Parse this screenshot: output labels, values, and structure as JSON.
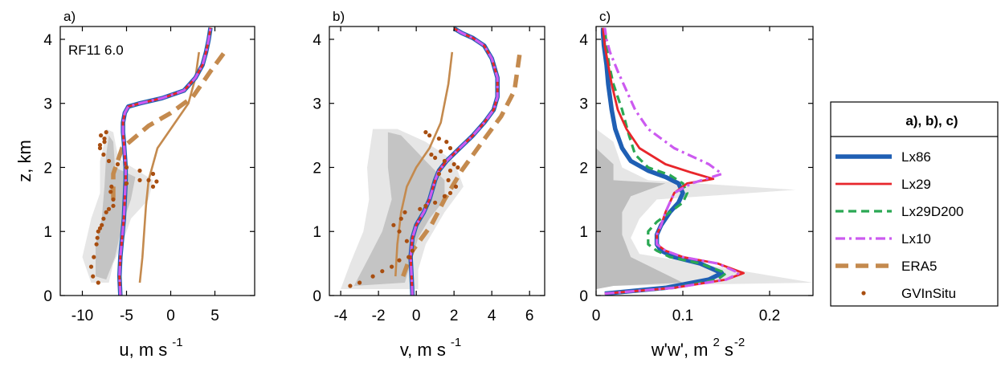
{
  "ylabel": "z, km",
  "legend": {
    "title": "a), b), c)",
    "entries": [
      {
        "key": "lx86",
        "label": "Lx86",
        "color": "#1f5fb4",
        "style": "solid-thick"
      },
      {
        "key": "lx29",
        "label": "Lx29",
        "color": "#e8262b",
        "style": "solid"
      },
      {
        "key": "lx29d",
        "label": "Lx29D200",
        "color": "#2aa853",
        "style": "dash"
      },
      {
        "key": "lx10",
        "label": "Lx10",
        "color": "#cc5af0",
        "style": "dashdot"
      },
      {
        "key": "era5",
        "label": "ERA5",
        "color": "#c48a4e",
        "style": "dash-thick"
      },
      {
        "key": "gv",
        "label": "GVInSitu",
        "color": "#a84e10",
        "style": "dot"
      }
    ]
  },
  "chart_data": [
    {
      "type": "line",
      "panel": "a)",
      "annotation": "RF11 6.0",
      "xlabel": "u, m s",
      "xlabel_sup": "-1",
      "xlim": [
        -12.5,
        9.5
      ],
      "ylim": [
        0,
        4.2
      ],
      "xticks": [
        -10,
        -5,
        0,
        5
      ],
      "yticks": [
        0,
        1,
        2,
        3,
        4
      ],
      "series": [
        {
          "name": "Lx86",
          "x": [
            -5.7,
            -5.8,
            -5.7,
            -5.5,
            -5.3,
            -5.2,
            -5.1,
            -5.1,
            -5.2,
            -5.3,
            -5.4,
            -5.4,
            -5.2,
            -4.8,
            -3.5,
            -1,
            1.5,
            2.8,
            3.6,
            4.0,
            4.3,
            4.5
          ],
          "y": [
            0,
            0.3,
            0.6,
            0.9,
            1.2,
            1.5,
            1.8,
            2.0,
            2.2,
            2.4,
            2.55,
            2.7,
            2.85,
            2.95,
            3.0,
            3.08,
            3.2,
            3.4,
            3.6,
            3.8,
            4.0,
            4.18
          ]
        },
        {
          "name": "Lx29",
          "x": [
            -5.7,
            -5.8,
            -5.7,
            -5.5,
            -5.3,
            -5.2,
            -5.1,
            -5.1,
            -5.2,
            -5.3,
            -5.4,
            -5.4,
            -5.2,
            -4.8,
            -3.5,
            -1,
            1.5,
            2.8,
            3.6,
            4.0,
            4.3,
            4.5
          ],
          "y": [
            0,
            0.3,
            0.6,
            0.9,
            1.2,
            1.5,
            1.8,
            2.0,
            2.2,
            2.4,
            2.55,
            2.7,
            2.85,
            2.95,
            3.0,
            3.08,
            3.2,
            3.4,
            3.6,
            3.8,
            4.0,
            4.18
          ]
        },
        {
          "name": "Lx29D200",
          "x": [
            -5.7,
            -5.8,
            -5.7,
            -5.5,
            -5.3,
            -5.2,
            -5.1,
            -5.1,
            -5.2,
            -5.3,
            -5.4,
            -5.4,
            -5.2,
            -4.8,
            -3.5,
            -1,
            1.5,
            2.8,
            3.6,
            4.0,
            4.3,
            4.5
          ],
          "y": [
            0,
            0.3,
            0.6,
            0.9,
            1.2,
            1.5,
            1.8,
            2.0,
            2.2,
            2.4,
            2.55,
            2.7,
            2.85,
            2.95,
            3.0,
            3.08,
            3.2,
            3.4,
            3.6,
            3.8,
            4.0,
            4.18
          ]
        },
        {
          "name": "Lx10",
          "x": [
            -5.7,
            -5.8,
            -5.7,
            -5.5,
            -5.3,
            -5.2,
            -5.1,
            -5.1,
            -5.2,
            -5.3,
            -5.4,
            -5.4,
            -5.2,
            -4.8,
            -3.5,
            -1,
            1.5,
            2.8,
            3.6,
            4.0,
            4.3,
            4.5
          ],
          "y": [
            0,
            0.3,
            0.6,
            0.9,
            1.2,
            1.5,
            1.8,
            2.0,
            2.2,
            2.4,
            2.55,
            2.7,
            2.85,
            2.95,
            3.0,
            3.08,
            3.2,
            3.4,
            3.6,
            3.8,
            4.0,
            4.18
          ]
        },
        {
          "name": "ERA5",
          "x": [
            -6.5,
            -6.5,
            -6.5,
            -6.5,
            -5.5,
            -2.5,
            0,
            2.5,
            4.5,
            6.2
          ],
          "y": [
            1.5,
            1.62,
            1.62,
            1.9,
            2.3,
            2.65,
            2.85,
            3.1,
            3.5,
            3.82
          ]
        },
        {
          "name": "thin-brown",
          "x": [
            -3.5,
            -3.2,
            -3.0,
            -2.8,
            -2.5,
            -1.5,
            0.5,
            2.0,
            2.8,
            3.2
          ],
          "y": [
            0.2,
            0.6,
            1.0,
            1.4,
            1.8,
            2.3,
            2.7,
            3.0,
            3.4,
            3.8
          ]
        },
        {
          "name": "GVInSitu",
          "x": [
            -8.2,
            -8.8,
            -9,
            -8.7,
            -8.4,
            -8.3,
            -8.2,
            -8,
            -7.8,
            -7.6,
            -7.3,
            -7,
            -6.5,
            -6.5,
            -6.8,
            -6.7,
            -5,
            -3.5,
            -2.5,
            -2,
            -1.6,
            -2,
            -3.5,
            -5,
            -6,
            -7,
            -7.6,
            -8,
            -8,
            -7.5,
            -7.5,
            -7.9,
            -7.3
          ],
          "y": [
            0.2,
            0.3,
            0.45,
            0.6,
            0.8,
            0.9,
            1.0,
            1.05,
            1.1,
            1.2,
            1.3,
            1.35,
            1.4,
            1.5,
            1.62,
            1.7,
            1.75,
            1.8,
            1.8,
            1.7,
            1.78,
            1.9,
            1.95,
            2.0,
            2.05,
            2.1,
            2.2,
            2.3,
            2.35,
            2.4,
            2.45,
            2.5,
            2.55
          ]
        }
      ]
    },
    {
      "type": "line",
      "panel": "b)",
      "xlabel": "v, m s",
      "xlabel_sup": "-1",
      "xlim": [
        -4.6,
        6.8
      ],
      "ylim": [
        0,
        4.2
      ],
      "xticks": [
        -4,
        -2,
        0,
        2,
        4,
        6
      ],
      "yticks": [
        0,
        1,
        2,
        3,
        4
      ],
      "series": [
        {
          "name": "Lx86",
          "x": [
            -0.2,
            -0.25,
            -0.3,
            -0.2,
            0,
            0.4,
            0.7,
            0.9,
            1.0,
            1.2,
            1.6,
            2.3,
            3.0,
            3.6,
            4.1,
            4.3,
            4.3,
            4.0,
            3.6,
            3.0,
            2.4,
            2.0
          ],
          "y": [
            0,
            0.3,
            0.6,
            0.9,
            1.1,
            1.3,
            1.5,
            1.7,
            1.8,
            1.95,
            2.1,
            2.3,
            2.5,
            2.7,
            2.9,
            3.1,
            3.4,
            3.7,
            3.9,
            4.02,
            4.1,
            4.17
          ]
        },
        {
          "name": "Lx29",
          "x": [
            -0.2,
            -0.25,
            -0.3,
            -0.2,
            0,
            0.4,
            0.7,
            0.9,
            1.0,
            1.2,
            1.6,
            2.3,
            3.0,
            3.6,
            4.1,
            4.3,
            4.3,
            4.0,
            3.6,
            3.0,
            2.4,
            2.0
          ],
          "y": [
            0,
            0.3,
            0.6,
            0.9,
            1.1,
            1.3,
            1.5,
            1.7,
            1.8,
            1.95,
            2.1,
            2.3,
            2.5,
            2.7,
            2.9,
            3.1,
            3.4,
            3.7,
            3.9,
            4.02,
            4.1,
            4.17
          ]
        },
        {
          "name": "Lx29D200",
          "x": [
            -0.2,
            -0.25,
            -0.3,
            -0.2,
            0,
            0.4,
            0.7,
            0.9,
            1.0,
            1.2,
            1.6,
            2.3,
            3.0,
            3.6,
            4.1,
            4.3,
            4.3,
            4.0,
            3.6,
            3.0,
            2.4,
            2.0
          ],
          "y": [
            0,
            0.3,
            0.6,
            0.9,
            1.1,
            1.3,
            1.5,
            1.7,
            1.8,
            1.95,
            2.1,
            2.3,
            2.5,
            2.7,
            2.9,
            3.1,
            3.4,
            3.7,
            3.9,
            4.02,
            4.1,
            4.17
          ]
        },
        {
          "name": "Lx10",
          "x": [
            -0.2,
            -0.25,
            -0.3,
            -0.2,
            0,
            0.4,
            0.7,
            0.9,
            1.0,
            1.2,
            1.6,
            2.3,
            3.0,
            3.6,
            4.1,
            4.3,
            4.3,
            4.0,
            3.6,
            3.0,
            2.4,
            2.0
          ],
          "y": [
            0,
            0.3,
            0.6,
            0.9,
            1.1,
            1.3,
            1.5,
            1.7,
            1.8,
            1.95,
            2.1,
            2.3,
            2.5,
            2.7,
            2.9,
            3.1,
            3.4,
            3.7,
            3.9,
            4.02,
            4.1,
            4.17
          ]
        },
        {
          "name": "ERA5",
          "x": [
            -0.7,
            -0.2,
            0.8,
            1.5,
            2.4,
            3.5,
            4.5,
            5.2,
            5.3,
            5.5
          ],
          "y": [
            0.3,
            0.7,
            1.1,
            1.5,
            1.95,
            2.4,
            2.8,
            3.2,
            3.4,
            3.82
          ]
        },
        {
          "name": "thin-brown",
          "x": [
            -1.1,
            -1.0,
            -0.8,
            -0.5,
            0,
            0.7,
            1.3,
            1.7,
            1.9
          ],
          "y": [
            0.3,
            0.8,
            1.3,
            1.7,
            2.0,
            2.3,
            2.7,
            3.3,
            3.8
          ]
        },
        {
          "name": "GVInSitu",
          "x": [
            -3.5,
            -3,
            -2.3,
            -1.8,
            -1.3,
            -0.9,
            -0.4,
            -0.2,
            -0.5,
            -0.9,
            -1.2,
            -0.8,
            -0.6,
            0.2,
            0.5,
            1,
            1.5,
            1.8,
            2.1,
            1.7,
            1.2,
            1.8,
            2.2,
            2.0,
            1.5,
            1.0,
            0.8,
            1.3,
            1.8,
            1.6,
            1.2,
            0.7,
            0.5
          ],
          "y": [
            0.15,
            0.2,
            0.3,
            0.38,
            0.45,
            0.55,
            0.6,
            0.7,
            0.85,
            1.0,
            1.1,
            1.2,
            1.3,
            1.35,
            1.4,
            1.45,
            1.55,
            1.6,
            1.7,
            1.8,
            1.9,
            1.95,
            2.0,
            2.05,
            2.1,
            2.15,
            2.2,
            2.25,
            2.3,
            2.4,
            2.45,
            2.5,
            2.55
          ]
        }
      ]
    },
    {
      "type": "line",
      "panel": "c)",
      "xlabel": "w'w', m",
      "xlabel_sup1": "2",
      "xlabel_mid": "s",
      "xlabel_sup2": "-2",
      "xlim": [
        0,
        0.25
      ],
      "ylim": [
        0,
        4.2
      ],
      "xticks": [
        0,
        0.1,
        0.2
      ],
      "yticks": [
        0,
        1,
        2,
        3,
        4
      ],
      "series": [
        {
          "name": "Lx86",
          "x": [
            0.01,
            0.08,
            0.13,
            0.145,
            0.12,
            0.09,
            0.075,
            0.07,
            0.07,
            0.075,
            0.085,
            0.095,
            0.1,
            0.095,
            0.08,
            0.06,
            0.04,
            0.03,
            0.022,
            0.018,
            0.014,
            0.012,
            0.009,
            0.008,
            0.008
          ],
          "y": [
            0.03,
            0.12,
            0.25,
            0.35,
            0.5,
            0.6,
            0.7,
            0.8,
            0.95,
            1.1,
            1.3,
            1.45,
            1.6,
            1.75,
            1.85,
            1.95,
            2.1,
            2.3,
            2.6,
            2.9,
            3.3,
            3.6,
            3.9,
            4.1,
            4.18
          ]
        },
        {
          "name": "Lx29",
          "x": [
            0.01,
            0.09,
            0.15,
            0.17,
            0.14,
            0.1,
            0.08,
            0.07,
            0.07,
            0.075,
            0.08,
            0.085,
            0.09,
            0.105,
            0.135,
            0.11,
            0.08,
            0.05,
            0.035,
            0.025,
            0.018,
            0.014,
            0.01,
            0.008
          ],
          "y": [
            0.03,
            0.12,
            0.25,
            0.35,
            0.5,
            0.6,
            0.7,
            0.8,
            0.95,
            1.1,
            1.3,
            1.45,
            1.6,
            1.75,
            1.82,
            1.92,
            2.05,
            2.3,
            2.6,
            2.9,
            3.3,
            3.6,
            3.9,
            4.18
          ]
        },
        {
          "name": "Lx29D200",
          "x": [
            0.01,
            0.09,
            0.14,
            0.15,
            0.12,
            0.085,
            0.07,
            0.06,
            0.06,
            0.07,
            0.085,
            0.1,
            0.105,
            0.1,
            0.085,
            0.06,
            0.045,
            0.038,
            0.03,
            0.02,
            0.015,
            0.012,
            0.01
          ],
          "y": [
            0.03,
            0.12,
            0.25,
            0.35,
            0.5,
            0.6,
            0.7,
            0.8,
            1.0,
            1.15,
            1.3,
            1.45,
            1.6,
            1.75,
            1.88,
            2.0,
            2.2,
            2.5,
            2.9,
            3.3,
            3.6,
            3.9,
            4.18
          ]
        },
        {
          "name": "Lx10",
          "x": [
            0.01,
            0.09,
            0.15,
            0.165,
            0.14,
            0.1,
            0.08,
            0.07,
            0.07,
            0.075,
            0.08,
            0.085,
            0.09,
            0.11,
            0.145,
            0.13,
            0.09,
            0.06,
            0.045,
            0.035,
            0.025,
            0.016,
            0.012,
            0.01
          ],
          "y": [
            0.03,
            0.12,
            0.25,
            0.35,
            0.5,
            0.6,
            0.7,
            0.8,
            0.95,
            1.1,
            1.3,
            1.45,
            1.6,
            1.75,
            1.9,
            2.05,
            2.3,
            2.6,
            2.9,
            3.2,
            3.5,
            3.8,
            4.0,
            4.18
          ]
        }
      ]
    }
  ]
}
